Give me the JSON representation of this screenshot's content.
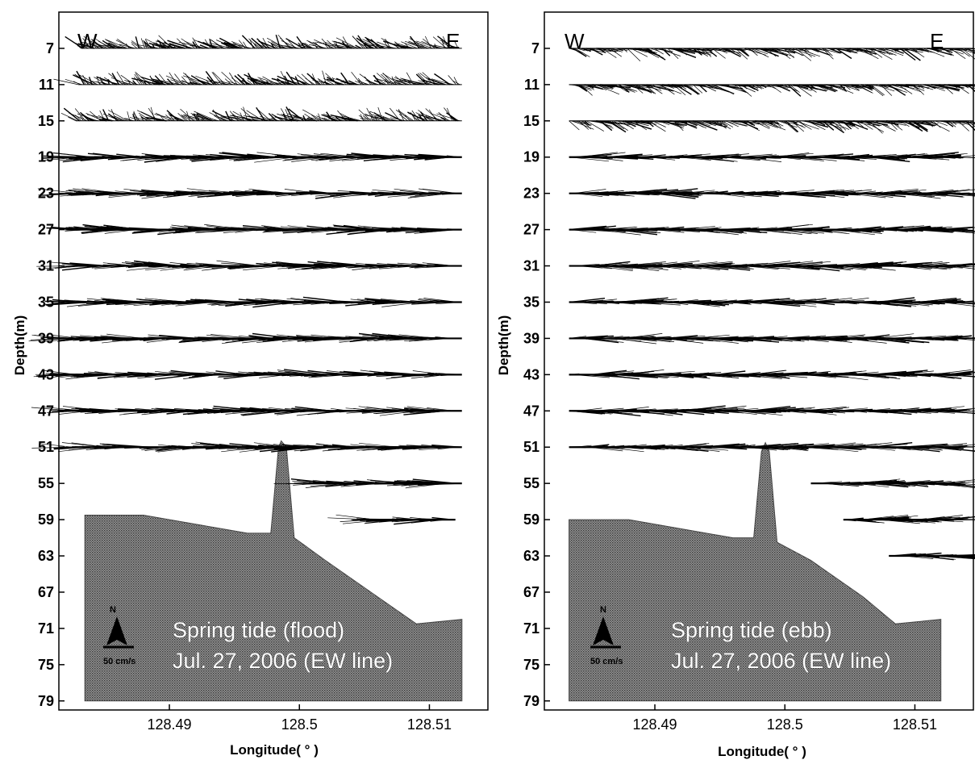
{
  "chart_data": [
    {
      "type": "vector-section",
      "panel": "flood",
      "direction_labels": {
        "west": "W",
        "east": "E"
      },
      "xlabel": "Longitude( ° )",
      "ylabel": "Depth(m)",
      "xticks": [
        "128.49",
        "128.5",
        "128.51"
      ],
      "xtick_values": [
        128.49,
        128.5,
        128.51
      ],
      "xlim": [
        128.4815,
        128.5145
      ],
      "yticks": [
        7,
        11,
        15,
        19,
        23,
        27,
        31,
        35,
        39,
        43,
        47,
        51,
        55,
        59,
        63,
        67,
        71,
        75,
        79
      ],
      "ylim": [
        3,
        80
      ],
      "annotation": [
        "Spring tide (flood)",
        "Jul. 27, 2006 (EW line)"
      ],
      "scale_label": "50 cm/s",
      "north_label": "N",
      "dominant_flow": "westward",
      "layers": [
        {
          "depth": 7,
          "lon_start": 128.4832,
          "lon_end": 128.5125
        },
        {
          "depth": 11,
          "lon_start": 128.483,
          "lon_end": 128.5125
        },
        {
          "depth": 15,
          "lon_start": 128.4828,
          "lon_end": 128.5125
        },
        {
          "depth": 19,
          "lon_start": 128.4828,
          "lon_end": 128.5125
        },
        {
          "depth": 23,
          "lon_start": 128.4828,
          "lon_end": 128.5125
        },
        {
          "depth": 27,
          "lon_start": 128.4828,
          "lon_end": 128.5125
        },
        {
          "depth": 31,
          "lon_start": 128.4828,
          "lon_end": 128.5125
        },
        {
          "depth": 35,
          "lon_start": 128.4828,
          "lon_end": 128.5125
        },
        {
          "depth": 39,
          "lon_start": 128.4818,
          "lon_end": 128.5125
        },
        {
          "depth": 43,
          "lon_start": 128.4818,
          "lon_end": 128.5125
        },
        {
          "depth": 47,
          "lon_start": 128.4825,
          "lon_end": 128.5125
        },
        {
          "depth": 51,
          "lon_start": 128.4825,
          "lon_end": 128.5125
        },
        {
          "depth": 55,
          "lon_start": 128.501,
          "lon_end": 128.5125
        },
        {
          "depth": 59,
          "lon_start": 128.5055,
          "lon_end": 128.512
        }
      ],
      "seabed": [
        {
          "lon": 128.4835,
          "depth": 58.5
        },
        {
          "lon": 128.488,
          "depth": 58.5
        },
        {
          "lon": 128.496,
          "depth": 60.5
        },
        {
          "lon": 128.4978,
          "depth": 60.5
        },
        {
          "lon": 128.4984,
          "depth": 51.0
        },
        {
          "lon": 128.4986,
          "depth": 50.3
        },
        {
          "lon": 128.499,
          "depth": 51.0
        },
        {
          "lon": 128.4996,
          "depth": 61.0
        },
        {
          "lon": 128.502,
          "depth": 63.5
        },
        {
          "lon": 128.506,
          "depth": 67.5
        },
        {
          "lon": 128.509,
          "depth": 70.5
        },
        {
          "lon": 128.5125,
          "depth": 70.0
        }
      ],
      "seabed_bottom": 79
    },
    {
      "type": "vector-section",
      "panel": "ebb",
      "direction_labels": {
        "west": "W",
        "east": "E"
      },
      "xlabel": "Longitude( ° )",
      "ylabel": "Depth(m)",
      "xticks": [
        "128.49",
        "128.5",
        "128.51"
      ],
      "xtick_values": [
        128.49,
        128.5,
        128.51
      ],
      "xlim": [
        128.4815,
        128.5145
      ],
      "yticks": [
        7,
        11,
        15,
        19,
        23,
        27,
        31,
        35,
        39,
        43,
        47,
        51,
        55,
        59,
        63,
        67,
        71,
        75,
        79
      ],
      "ylim": [
        3,
        80
      ],
      "annotation": [
        "Spring tide (ebb)",
        "Jul. 27, 2006 (EW line)"
      ],
      "scale_label": "50 cm/s",
      "north_label": "N",
      "dominant_flow": "eastward",
      "layers": [
        {
          "depth": 7,
          "lon_start": 128.4834,
          "lon_end": 128.5145
        },
        {
          "depth": 11,
          "lon_start": 128.4834,
          "lon_end": 128.5145
        },
        {
          "depth": 15,
          "lon_start": 128.4834,
          "lon_end": 128.5145
        },
        {
          "depth": 19,
          "lon_start": 128.4834,
          "lon_end": 128.5135
        },
        {
          "depth": 23,
          "lon_start": 128.4834,
          "lon_end": 128.5135
        },
        {
          "depth": 27,
          "lon_start": 128.4834,
          "lon_end": 128.5135
        },
        {
          "depth": 31,
          "lon_start": 128.4834,
          "lon_end": 128.5135
        },
        {
          "depth": 35,
          "lon_start": 128.4834,
          "lon_end": 128.5135
        },
        {
          "depth": 39,
          "lon_start": 128.4834,
          "lon_end": 128.5135
        },
        {
          "depth": 43,
          "lon_start": 128.4834,
          "lon_end": 128.5135
        },
        {
          "depth": 47,
          "lon_start": 128.4834,
          "lon_end": 128.5135
        },
        {
          "depth": 51,
          "lon_start": 128.4834,
          "lon_end": 128.5135
        },
        {
          "depth": 55,
          "lon_start": 128.502,
          "lon_end": 128.5135
        },
        {
          "depth": 59,
          "lon_start": 128.5045,
          "lon_end": 128.513
        },
        {
          "depth": 63,
          "lon_start": 128.508,
          "lon_end": 128.5145
        }
      ],
      "seabed": [
        {
          "lon": 128.4834,
          "depth": 59.0
        },
        {
          "lon": 128.488,
          "depth": 59.0
        },
        {
          "lon": 128.496,
          "depth": 61.0
        },
        {
          "lon": 128.4976,
          "depth": 61.0
        },
        {
          "lon": 128.4982,
          "depth": 51.5
        },
        {
          "lon": 128.4985,
          "depth": 50.5
        },
        {
          "lon": 128.4988,
          "depth": 51.5
        },
        {
          "lon": 128.4994,
          "depth": 61.5
        },
        {
          "lon": 128.502,
          "depth": 63.5
        },
        {
          "lon": 128.506,
          "depth": 67.5
        },
        {
          "lon": 128.5085,
          "depth": 70.5
        },
        {
          "lon": 128.512,
          "depth": 70.0
        }
      ],
      "seabed_bottom": 79
    }
  ]
}
